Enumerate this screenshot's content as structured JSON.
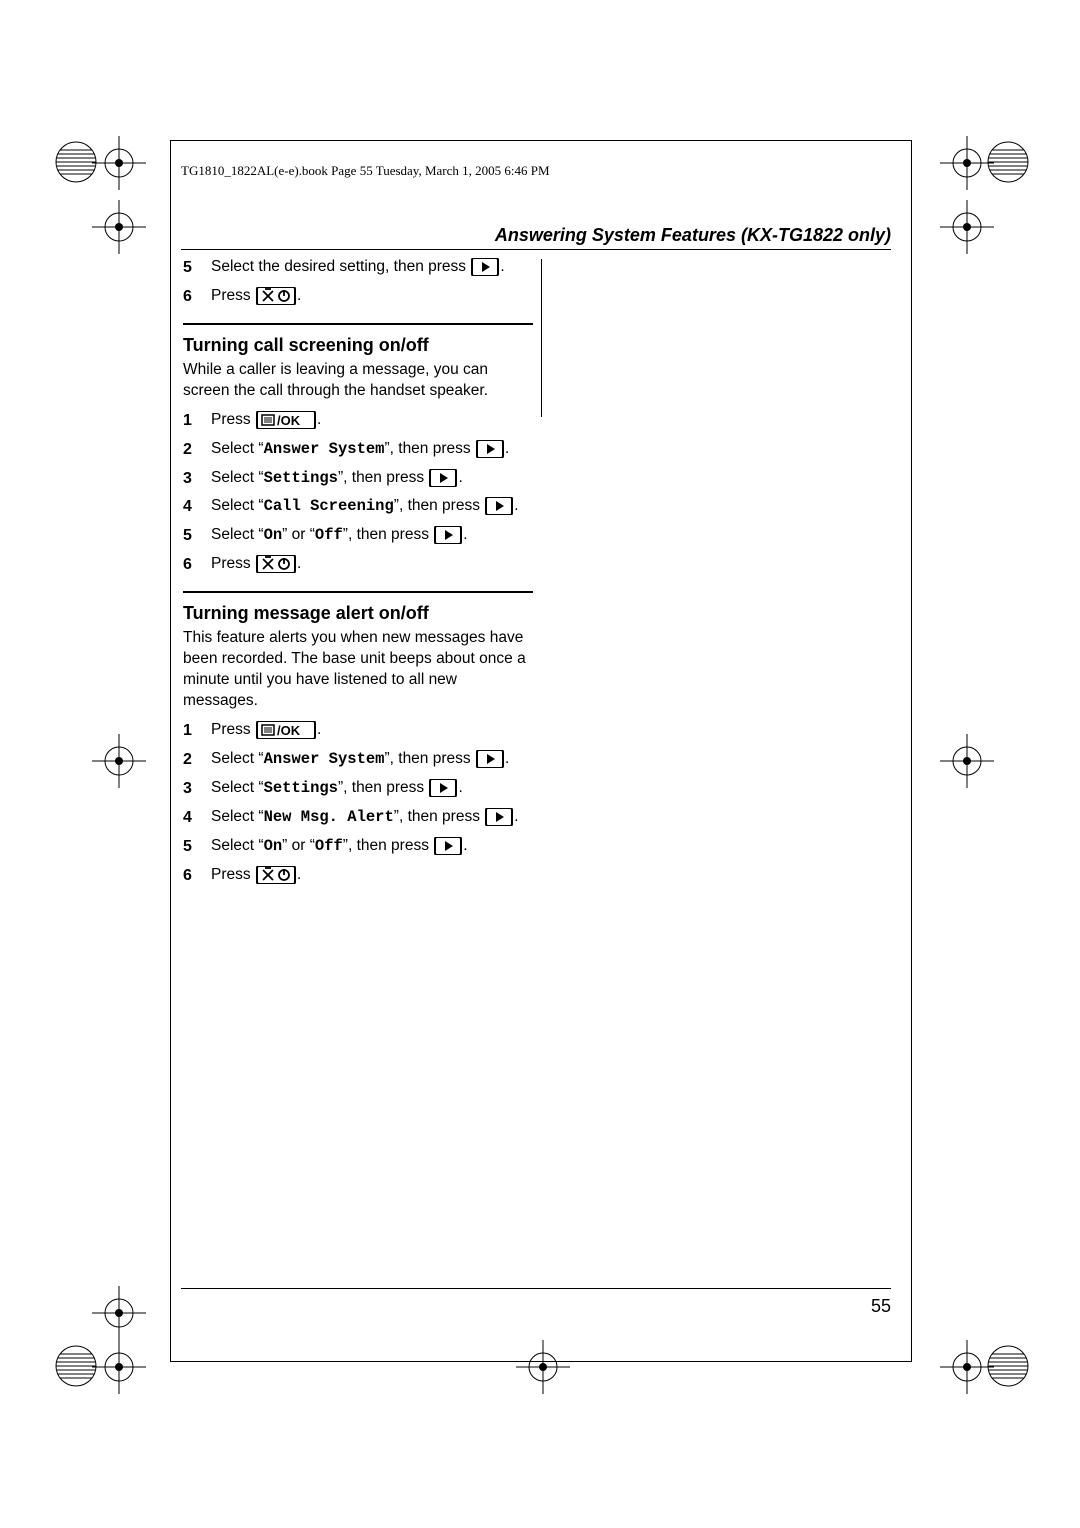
{
  "header": "TG1810_1822AL(e-e).book  Page 55  Tuesday, March 1, 2005  6:46 PM",
  "runhead": "Answering System Features (KX-TG1822 only)",
  "page_number": "55",
  "icons": {
    "right_arrow": "▶",
    "menu_ok": "≡/OK",
    "poweroff": "⌀⏻"
  },
  "continuation_steps": [
    {
      "n": "5",
      "text": "Select the desired setting, then press ",
      "suffix_btn": "right"
    },
    {
      "n": "6",
      "text": "Press ",
      "suffix_btn": "poweroff"
    }
  ],
  "sections": [
    {
      "title": "Turning call screening on/off",
      "intro": "While a caller is leaving a message, you can screen the call through the handset speaker.",
      "steps": [
        {
          "pre": "Press ",
          "btn": "menu_ok"
        },
        {
          "pre": "Select “",
          "mono": "Answer System",
          "mid": "”, then press ",
          "btn": "right"
        },
        {
          "pre": "Select “",
          "mono": "Settings",
          "mid": "”, then press ",
          "btn": "right"
        },
        {
          "pre": "Select “",
          "mono": "Call Screening",
          "mid": "”, then press ",
          "btn": "right"
        },
        {
          "pre": "Select “",
          "mono": "On",
          "mid": "” or “",
          "mono2": "Off",
          "post": "”, then press ",
          "btn": "right"
        },
        {
          "pre": "Press ",
          "btn": "poweroff"
        }
      ]
    },
    {
      "title": "Turning message alert on/off",
      "intro": "This feature alerts you when new messages have been recorded. The base unit beeps about once a minute until you have listened to all new messages.",
      "steps": [
        {
          "pre": "Press ",
          "btn": "menu_ok"
        },
        {
          "pre": "Select “",
          "mono": "Answer System",
          "mid": "”, then press ",
          "btn": "right"
        },
        {
          "pre": "Select “",
          "mono": "Settings",
          "mid": "”, then press ",
          "btn": "right"
        },
        {
          "pre": "Select “",
          "mono": "New Msg. Alert",
          "mid": "”, then press ",
          "btn": "right"
        },
        {
          "pre": "Select “",
          "mono": "On",
          "mid": "” or “",
          "mono2": "Off",
          "post": "”, then press ",
          "btn": "right"
        },
        {
          "pre": "Press ",
          "btn": "poweroff"
        }
      ]
    }
  ],
  "colors": {
    "text": "#000000",
    "background": "#ffffff"
  },
  "fontsizes": {
    "header": 13,
    "runhead": 18,
    "section_title": 18,
    "body": 15.5,
    "page_num": 18
  }
}
